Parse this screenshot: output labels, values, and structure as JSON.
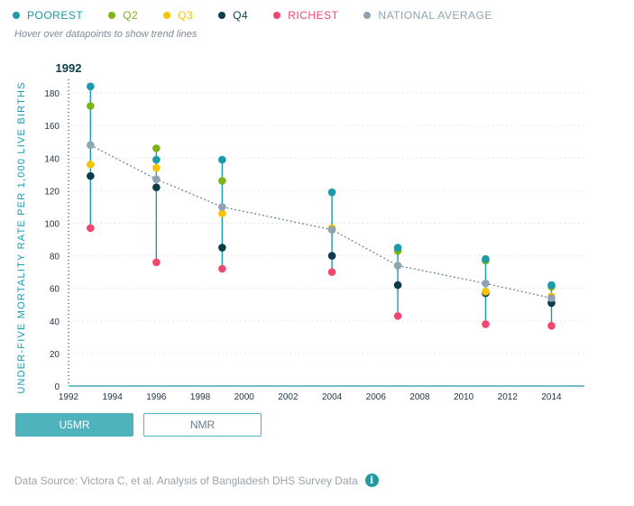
{
  "legend": [
    {
      "label": "POOREST",
      "color": "#1b9aaa"
    },
    {
      "label": "Q2",
      "color": "#7cb518"
    },
    {
      "label": "Q3",
      "color": "#f7c300"
    },
    {
      "label": "Q4",
      "color": "#0d3b4c"
    },
    {
      "label": "RICHEST",
      "color": "#ef476f"
    },
    {
      "label": "NATIONAL AVERAGE",
      "color": "#8fa3b2"
    }
  ],
  "hint": "Hover over datapoints to show trend lines",
  "buttons": {
    "u5mr": "U5MR",
    "nmr": "NMR"
  },
  "footer": {
    "source": "Data Source: Victora C, et al. Analysis of Bangladesh DHS Survey Data",
    "info_icon": "info-icon"
  },
  "chart_data": {
    "type": "scatter",
    "ylabel": "UNDER-FIVE MORTALITY RATE PER 1,000 LIVE BIRTHS",
    "xlabel": "",
    "highlight_year_label": "1992",
    "xlim": [
      1992,
      2015.5
    ],
    "ylim": [
      0,
      190
    ],
    "x_ticks": [
      "1992",
      "1994",
      "1996",
      "1998",
      "2000",
      "2002",
      "2004",
      "2006",
      "2008",
      "2010",
      "2012",
      "2014"
    ],
    "y_ticks": [
      "0",
      "20",
      "40",
      "60",
      "80",
      "100",
      "120",
      "140",
      "160",
      "180"
    ],
    "grid": "horizontal dotted",
    "x": [
      1993,
      1996,
      1999,
      2004,
      2007,
      2011,
      2014
    ],
    "series": [
      {
        "name": "POOREST",
        "color": "#1b9aaa",
        "values": [
          184,
          139,
          139,
          119,
          85,
          78,
          62
        ]
      },
      {
        "name": "Q2",
        "color": "#7cb518",
        "values": [
          172,
          146,
          126,
          96,
          83,
          77,
          61
        ]
      },
      {
        "name": "Q3",
        "color": "#f7c300",
        "values": [
          136,
          134,
          106,
          97,
          84,
          58,
          55
        ]
      },
      {
        "name": "Q4",
        "color": "#0d3b4c",
        "values": [
          129,
          122,
          85,
          80,
          62,
          57,
          51
        ]
      },
      {
        "name": "RICHEST",
        "color": "#ef476f",
        "values": [
          97,
          76,
          72,
          70,
          43,
          38,
          37
        ]
      },
      {
        "name": "NATIONAL AVERAGE",
        "color": "#8fa3b2",
        "values": [
          148,
          127,
          110,
          96,
          74,
          63,
          54
        ]
      }
    ]
  }
}
